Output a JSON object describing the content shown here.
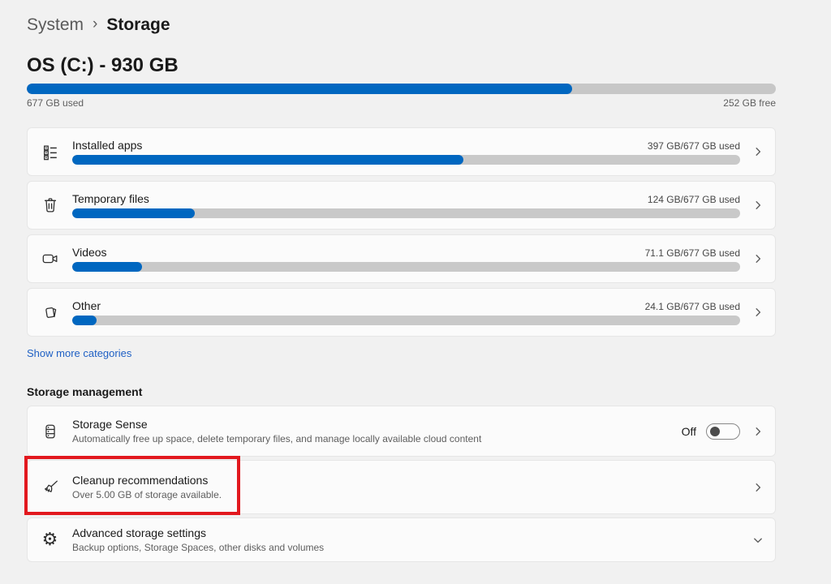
{
  "breadcrumb": {
    "parent": "System",
    "separator": "›",
    "current": "Storage"
  },
  "drive": {
    "title": "OS (C:) - 930 GB",
    "used_label": "677 GB used",
    "free_label": "252 GB free",
    "used_percent": 72.8,
    "total_gb": 930,
    "used_gb": 677,
    "free_gb": 252
  },
  "categories": [
    {
      "name": "Installed apps",
      "usage": "397 GB/677 GB used",
      "percent": 58.6,
      "icon": "apps-list-icon"
    },
    {
      "name": "Temporary files",
      "usage": "124 GB/677 GB used",
      "percent": 18.3,
      "icon": "trash-icon"
    },
    {
      "name": "Videos",
      "usage": "71.1 GB/677 GB used",
      "percent": 10.5,
      "icon": "video-camera-icon"
    },
    {
      "name": "Other",
      "usage": "24.1 GB/677 GB used",
      "percent": 3.6,
      "icon": "pages-icon"
    }
  ],
  "show_more_label": "Show more categories",
  "management": {
    "header": "Storage management",
    "storage_sense": {
      "title": "Storage Sense",
      "subtitle": "Automatically free up space, delete temporary files, and manage locally available cloud content",
      "toggle_label": "Off",
      "toggle_state": "off",
      "icon": "storage-sense-icon"
    },
    "cleanup": {
      "title": "Cleanup recommendations",
      "subtitle": "Over 5.00 GB of storage available.",
      "icon": "broom-icon",
      "highlighted": true
    },
    "advanced": {
      "title": "Advanced storage settings",
      "subtitle": "Backup options, Storage Spaces, other disks and volumes",
      "icon": "gear-icon"
    }
  },
  "annotation": {
    "type": "highlight-box",
    "target": "Cleanup recommendations",
    "color": "#e2181e"
  },
  "colors": {
    "accent_blue": "#0067c0",
    "bar_track": "#c9c9c9",
    "page_background": "#f1f1f1",
    "card_background": "#fbfbfb",
    "link_blue": "#1f60c4",
    "annotation_red": "#e2181e"
  }
}
